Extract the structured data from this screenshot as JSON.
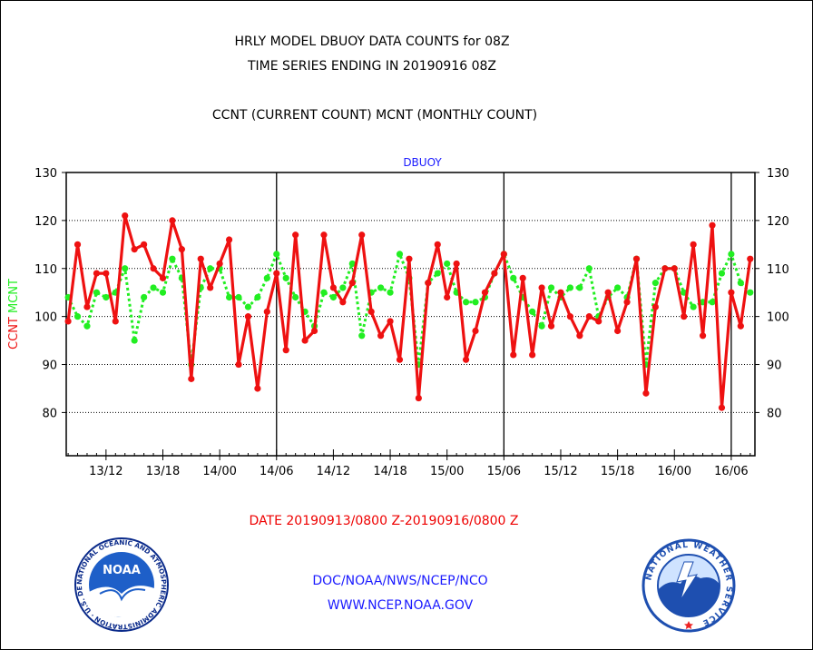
{
  "header": {
    "title_line1": "HRLY MODEL DBUOY DATA COUNTS for 08Z",
    "title_line2": "TIME SERIES ENDING IN 20190916 08Z",
    "subtitle": "CCNT (CURRENT COUNT) MCNT (MONTHLY COUNT)"
  },
  "footer": {
    "date_range": "DATE 20190913/0800 Z-20190916/0800 Z",
    "org": "DOC/NOAA/NWS/NCEP/NCO",
    "url": "WWW.NCEP.NOAA.GOV"
  },
  "logos": {
    "noaa_text": "NOAA",
    "noaa_ring": "NATIONAL OCEANIC AND ATMOSPHERIC ADMINISTRATION · U.S. DEPARTMENT OF COMMERCE ·",
    "nws_ring": "NATIONAL WEATHER SERVICE"
  },
  "colors": {
    "ccnt": "#ee1111",
    "mcnt": "#22ee22",
    "label_blue": "#1a1aff",
    "grid": "#000000"
  },
  "chart_data": {
    "type": "line",
    "title": "DBUOY",
    "ylabel_parts": [
      {
        "text": "CCNT",
        "color": "#ee1111"
      },
      {
        "text": "MCNT",
        "color": "#22ee22"
      }
    ],
    "ylim": [
      71,
      130
    ],
    "yticks": [
      80,
      90,
      100,
      110,
      120,
      130
    ],
    "grid_y": [
      80,
      90,
      100,
      110,
      120
    ],
    "grid": true,
    "x_unit": "hours since 2019-09-13 08Z",
    "xlim": [
      -0.2,
      72.5
    ],
    "x_ticks": [
      {
        "x": 4,
        "label": "13/12"
      },
      {
        "x": 10,
        "label": "13/18"
      },
      {
        "x": 16,
        "label": "14/00"
      },
      {
        "x": 22,
        "label": "14/06"
      },
      {
        "x": 28,
        "label": "14/12"
      },
      {
        "x": 34,
        "label": "14/18"
      },
      {
        "x": 40,
        "label": "15/00"
      },
      {
        "x": 46,
        "label": "15/06"
      },
      {
        "x": 52,
        "label": "15/12"
      },
      {
        "x": 58,
        "label": "15/18"
      },
      {
        "x": 64,
        "label": "16/00"
      },
      {
        "x": 70,
        "label": "16/06"
      }
    ],
    "day_lines_x": [
      22,
      46,
      70
    ],
    "series": [
      {
        "name": "CCNT",
        "color": "#ee1111",
        "style": "solid",
        "values": [
          99,
          115,
          102,
          109,
          109,
          99,
          121,
          114,
          115,
          110,
          108,
          120,
          114,
          87,
          112,
          106,
          111,
          116,
          90,
          100,
          85,
          101,
          109,
          93,
          117,
          95,
          97,
          117,
          106,
          103,
          107,
          117,
          101,
          96,
          99,
          91,
          112,
          83,
          107,
          115,
          104,
          111,
          91,
          97,
          105,
          109,
          113,
          92,
          108,
          92,
          106,
          98,
          105,
          100,
          96,
          100,
          99,
          105,
          97,
          103,
          112,
          84,
          102,
          110,
          110,
          100,
          115,
          96,
          119,
          81,
          105,
          98,
          112
        ]
      },
      {
        "name": "MCNT",
        "color": "#22ee22",
        "style": "dotted",
        "values": [
          104,
          100,
          98,
          105,
          104,
          105,
          110,
          95,
          104,
          106,
          105,
          112,
          108,
          90,
          106,
          110,
          110,
          104,
          104,
          102,
          104,
          108,
          113,
          108,
          104,
          101,
          98,
          105,
          104,
          106,
          111,
          96,
          105,
          106,
          105,
          113,
          108,
          90,
          107,
          109,
          111,
          105,
          103,
          103,
          104,
          109,
          113,
          108,
          104,
          101,
          98,
          106,
          104,
          106,
          106,
          110,
          100,
          104,
          106,
          104,
          112,
          90,
          107,
          110,
          110,
          105,
          102,
          103,
          103,
          109,
          113,
          107,
          105
        ]
      }
    ]
  }
}
